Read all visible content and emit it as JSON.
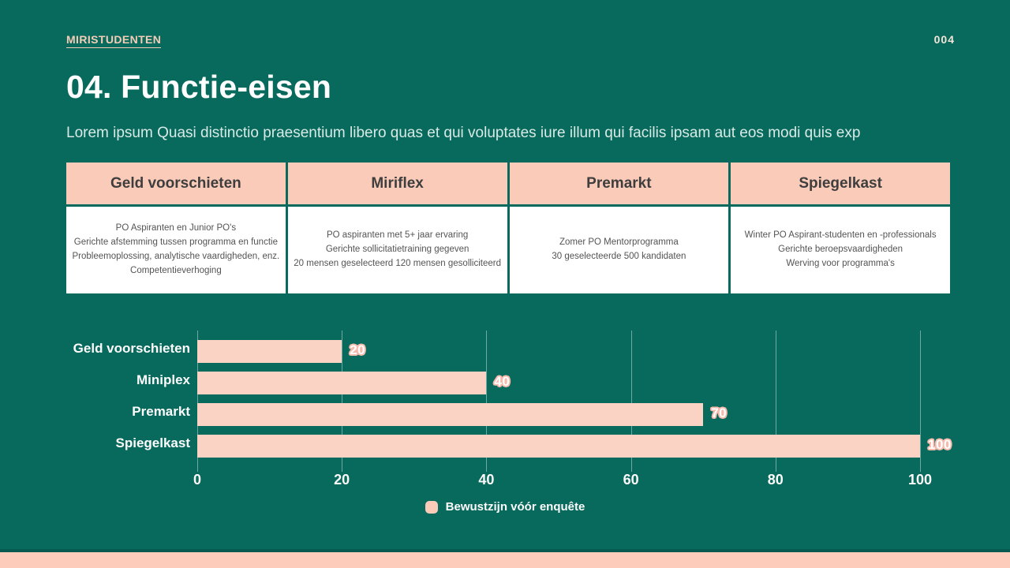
{
  "page": {
    "brand": "MIRISTUDENTEN",
    "page_number": "004",
    "title": "04. Functie-eisen",
    "subtitle": "Lorem ipsum Quasi distinctio praesentium libero quas et qui voluptates iure illum qui facilis ipsam aut eos modi quis exp"
  },
  "colors": {
    "background": "#08695D",
    "accent_peach": "#FACBB8",
    "bar_fill": "#FAD3C4",
    "value_label_outline": "#F5BCAE",
    "table_header_text": "#3E3E3E",
    "table_body_text": "#545454"
  },
  "table": {
    "columns": [
      {
        "header": "Geld voorschieten",
        "lines": [
          "PO Aspiranten en Junior PO's",
          "Gerichte afstemming tussen programma en functie",
          "Probleemoplossing, analytische vaardigheden, enz.",
          "Competentieverhoging"
        ]
      },
      {
        "header": "Miriflex",
        "lines": [
          "PO aspiranten met 5+ jaar ervaring",
          "Gerichte sollicitatietraining gegeven",
          "20 mensen geselecteerd 120 mensen gesolliciteerd"
        ]
      },
      {
        "header": "Premarkt",
        "lines": [
          "Zomer PO Mentorprogramma",
          "30 geselecteerde 500 kandidaten"
        ]
      },
      {
        "header": "Spiegelkast",
        "lines": [
          "Winter PO Aspirant-studenten en -professionals",
          "Gerichte beroepsvaardigheden",
          "Werving voor programma's"
        ]
      }
    ]
  },
  "chart_data": {
    "type": "bar",
    "orientation": "horizontal",
    "categories": [
      "Geld voorschieten",
      "Miniplex",
      "Premarkt",
      "Spiegelkast"
    ],
    "values": [
      20,
      40,
      70,
      100
    ],
    "series_name": "Bewustzijn vóór enquête",
    "title": "",
    "xlabel": "",
    "ylabel": "",
    "xlim": [
      0,
      100
    ],
    "x_ticks": [
      0,
      20,
      40,
      60,
      80,
      100
    ],
    "grid": true,
    "legend_position": "bottom",
    "bar_color": "#FAD3C4"
  },
  "legend": {
    "label": "Bewustzijn vóór enquête",
    "swatch_color": "#FACBB8"
  }
}
